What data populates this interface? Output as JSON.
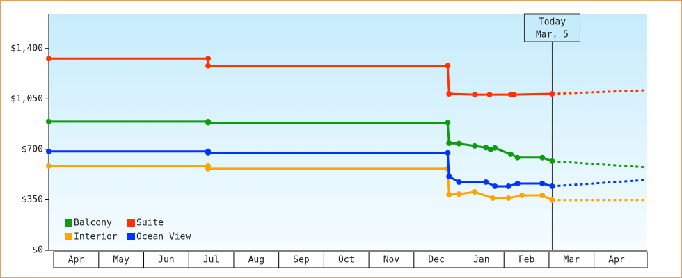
{
  "chart_data": {
    "type": "line",
    "xlim": [
      -0.11,
      13.18
    ],
    "xticks": [
      {
        "value": 0,
        "label": "Apr"
      },
      {
        "value": 1,
        "label": "May"
      },
      {
        "value": 2,
        "label": "Jun"
      },
      {
        "value": 3,
        "label": "Jul"
      },
      {
        "value": 4,
        "label": "Aug"
      },
      {
        "value": 5,
        "label": "Sep"
      },
      {
        "value": 6,
        "label": "Oct"
      },
      {
        "value": 7,
        "label": "Nov"
      },
      {
        "value": 8,
        "label": "Dec"
      },
      {
        "value": 9,
        "label": "Jan"
      },
      {
        "value": 10,
        "label": "Feb"
      },
      {
        "value": 11,
        "label": "Mar"
      },
      {
        "value": 12,
        "label": "Apr"
      }
    ],
    "ylim": [
      0,
      1640
    ],
    "yticks": [
      {
        "value": 0,
        "label": "$0"
      },
      {
        "value": 350,
        "label": "$350"
      },
      {
        "value": 700,
        "label": "$700"
      },
      {
        "value": 1050,
        "label": "$1,050"
      },
      {
        "value": 1400,
        "label": "$1,400"
      }
    ],
    "today": {
      "x": 11.07,
      "label": [
        "Today",
        "Mar. 5"
      ]
    },
    "legend": "lower left",
    "series": [
      {
        "name": "Balcony",
        "color": "#119911",
        "x": [
          -0.11,
          3.43,
          3.43,
          8.75,
          8.78,
          9.0,
          9.35,
          9.6,
          9.7,
          9.8,
          10.15,
          10.3,
          10.85,
          11.07
        ],
        "values": [
          893,
          893,
          885,
          885,
          743,
          740,
          724,
          712,
          700,
          710,
          666,
          643,
          643,
          618
        ],
        "forecast": {
          "x": [
            11.07,
            13.18
          ],
          "values": [
            618,
            574
          ]
        }
      },
      {
        "name": "Suite",
        "color": "#ff3300",
        "x": [
          -0.11,
          3.43,
          3.43,
          8.75,
          8.78,
          9.35,
          9.68,
          10.15,
          10.22,
          11.07
        ],
        "values": [
          1330,
          1330,
          1280,
          1280,
          1085,
          1080,
          1080,
          1080,
          1080,
          1085
        ],
        "forecast": {
          "x": [
            11.07,
            13.18
          ],
          "values": [
            1085,
            1110
          ]
        }
      },
      {
        "name": "Interior",
        "color": "#ffa500",
        "x": [
          -0.11,
          3.43,
          3.43,
          8.75,
          8.78,
          9.0,
          9.35,
          9.75,
          10.1,
          10.4,
          10.85,
          11.07
        ],
        "values": [
          584,
          584,
          565,
          565,
          386,
          390,
          405,
          362,
          362,
          381,
          381,
          348
        ],
        "forecast": {
          "x": [
            11.07,
            13.18
          ],
          "values": [
            348,
            348
          ]
        }
      },
      {
        "name": "Ocean View",
        "color": "#0033ff",
        "x": [
          -0.11,
          3.43,
          3.43,
          8.75,
          8.78,
          9.0,
          9.6,
          9.8,
          10.1,
          10.3,
          10.85,
          11.07
        ],
        "values": [
          686,
          686,
          676,
          676,
          512,
          473,
          473,
          444,
          444,
          463,
          463,
          444
        ],
        "forecast": {
          "x": [
            11.07,
            13.18
          ],
          "values": [
            444,
            488
          ]
        }
      }
    ]
  }
}
